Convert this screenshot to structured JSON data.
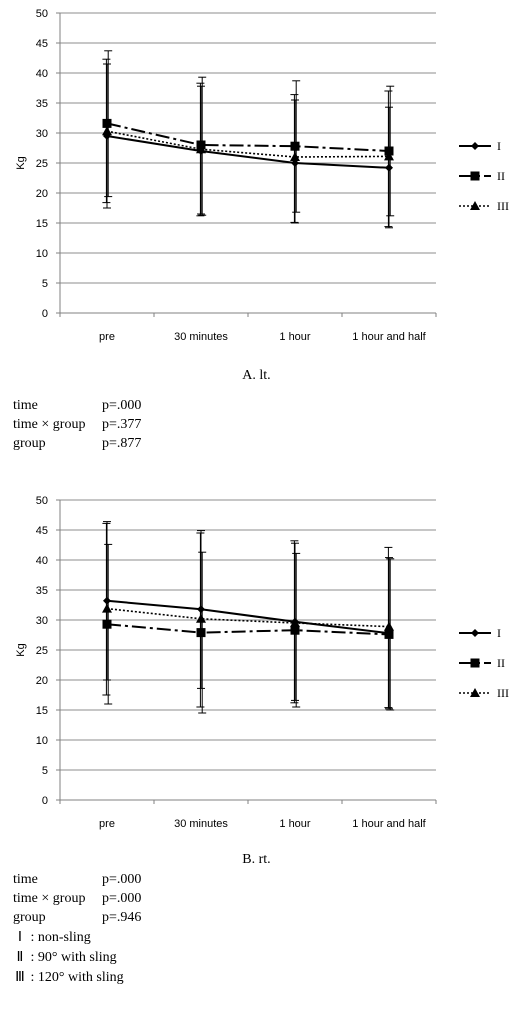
{
  "charts": [
    {
      "id": "A",
      "caption": "A.  lt.",
      "chart_data": {
        "type": "line",
        "ylabel": "Kg",
        "xlabel": "",
        "ylim": [
          0,
          50
        ],
        "yticks": [
          0,
          5,
          10,
          15,
          20,
          25,
          30,
          35,
          40,
          45,
          50
        ],
        "categories": [
          "pre",
          "30 minutes",
          "1 hour",
          "1 hour and half"
        ],
        "grid": "horizontal",
        "legend": "right",
        "series": [
          {
            "name": "I",
            "values": [
              29.5,
              27.0,
              25.0,
              24.2
            ],
            "errors": [
              [
                17.5,
                41.5
              ],
              [
                16.5,
                37.8
              ],
              [
                15.0,
                35.5
              ],
              [
                14.2,
                34.3
              ]
            ]
          },
          {
            "name": "II",
            "values": [
              31.6,
              28.0,
              27.8,
              27.0
            ],
            "errors": [
              [
                19.4,
                43.7
              ],
              [
                16.3,
                39.3
              ],
              [
                16.8,
                38.7
              ],
              [
                16.2,
                37.8
              ]
            ]
          },
          {
            "name": "III",
            "values": [
              30.3,
              27.3,
              26.0,
              26.1
            ],
            "errors": [
              [
                18.4,
                42.3
              ],
              [
                16.2,
                38.3
              ],
              [
                15.1,
                36.4
              ],
              [
                14.4,
                37.0
              ]
            ]
          }
        ]
      },
      "stats": [
        {
          "label": "time",
          "value": "p=.000"
        },
        {
          "label": "time × group",
          "value": "p=.377"
        },
        {
          "label": "group",
          "value": "p=.877"
        }
      ]
    },
    {
      "id": "B",
      "caption": "B.  rt.",
      "chart_data": {
        "type": "line",
        "ylabel": "Kg",
        "xlabel": "",
        "ylim": [
          0,
          50
        ],
        "yticks": [
          0,
          5,
          10,
          15,
          20,
          25,
          30,
          35,
          40,
          45,
          50
        ],
        "categories": [
          "pre",
          "30 minutes",
          "1 hour",
          "1 hour and half"
        ],
        "grid": "horizontal",
        "legend": "right",
        "series": [
          {
            "name": "I",
            "values": [
              33.2,
              31.8,
              29.7,
              27.8
            ],
            "errors": [
              [
                20.0,
                46.4
              ],
              [
                18.6,
                44.9
              ],
              [
                16.6,
                42.8
              ],
              [
                15.2,
                40.4
              ]
            ]
          },
          {
            "name": "II",
            "values": [
              29.3,
              27.9,
              28.3,
              27.6
            ],
            "errors": [
              [
                16.0,
                42.6
              ],
              [
                14.5,
                41.3
              ],
              [
                15.5,
                41.1
              ],
              [
                15.0,
                40.2
              ]
            ]
          },
          {
            "name": "III",
            "values": [
              31.9,
              30.2,
              29.5,
              28.9
            ],
            "errors": [
              [
                17.5,
                46.1
              ],
              [
                15.5,
                44.5
              ],
              [
                16.2,
                43.2
              ],
              [
                15.4,
                42.1
              ]
            ]
          }
        ]
      },
      "stats": [
        {
          "label": "time",
          "value": "p=.000"
        },
        {
          "label": "time × group",
          "value": "p=.000"
        },
        {
          "label": "group",
          "value": "p=.946"
        }
      ]
    }
  ],
  "notes": [
    {
      "symbol": "Ⅰ",
      "text": ": non-sling"
    },
    {
      "symbol": "Ⅱ",
      "text": ": 90° with sling"
    },
    {
      "symbol": "Ⅲ",
      "text": ": 120° with sling"
    }
  ]
}
